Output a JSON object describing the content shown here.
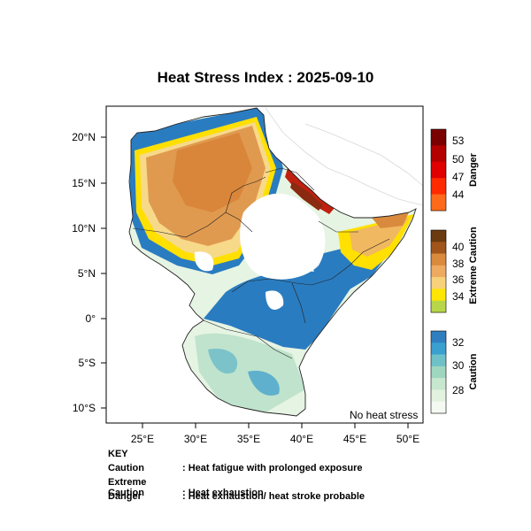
{
  "title": "Heat Stress Index : 2025-09-10",
  "map": {
    "lon_ticks": [
      "25°E",
      "30°E",
      "35°E",
      "40°E",
      "45°E",
      "50°E"
    ],
    "lat_ticks": [
      "20°N",
      "15°N",
      "10°N",
      "5°N",
      "0°",
      "5°S",
      "10°S"
    ],
    "no_stress_label": "No heat stress"
  },
  "colorbars": {
    "danger": {
      "title": "Danger",
      "labels": [
        "53",
        "50",
        "47",
        "44"
      ],
      "colors": [
        "#7a0000",
        "#b50000",
        "#e00000",
        "#ff2a00",
        "#ff6a1a"
      ]
    },
    "extreme": {
      "title": "Extreme Caution",
      "labels": [
        "40",
        "38",
        "36",
        "34"
      ],
      "colors": [
        "#6b3a10",
        "#a0551a",
        "#d98a3d",
        "#eeaa60",
        "#f7d27a",
        "#ffe600",
        "#b8d64a"
      ]
    },
    "caution": {
      "title": "Caution",
      "labels": [
        "32",
        "30",
        "28"
      ],
      "colors": [
        "#2f7fc0",
        "#3aa0d0",
        "#6fc1c8",
        "#9fd6c0",
        "#c7e7cf",
        "#e2f2df",
        "#f4faf1"
      ]
    }
  },
  "colors": {
    "sahel_orange": "#e09a4f",
    "yellow": "#ffe000",
    "cream": "#f7d98a",
    "blue": "#2a7cc0",
    "light_green": "#cfe9d4",
    "danger_red": "#c0200f"
  },
  "key": {
    "heading": "KEY",
    "rows": [
      {
        "term": "Caution",
        "desc": ": Heat fatigue with prolonged exposure"
      },
      {
        "term": "Extreme Caution",
        "desc": ": Heat exhaustion"
      },
      {
        "term": "Danger",
        "desc": ": Heat exhaustion/ heat stroke probable"
      }
    ]
  }
}
